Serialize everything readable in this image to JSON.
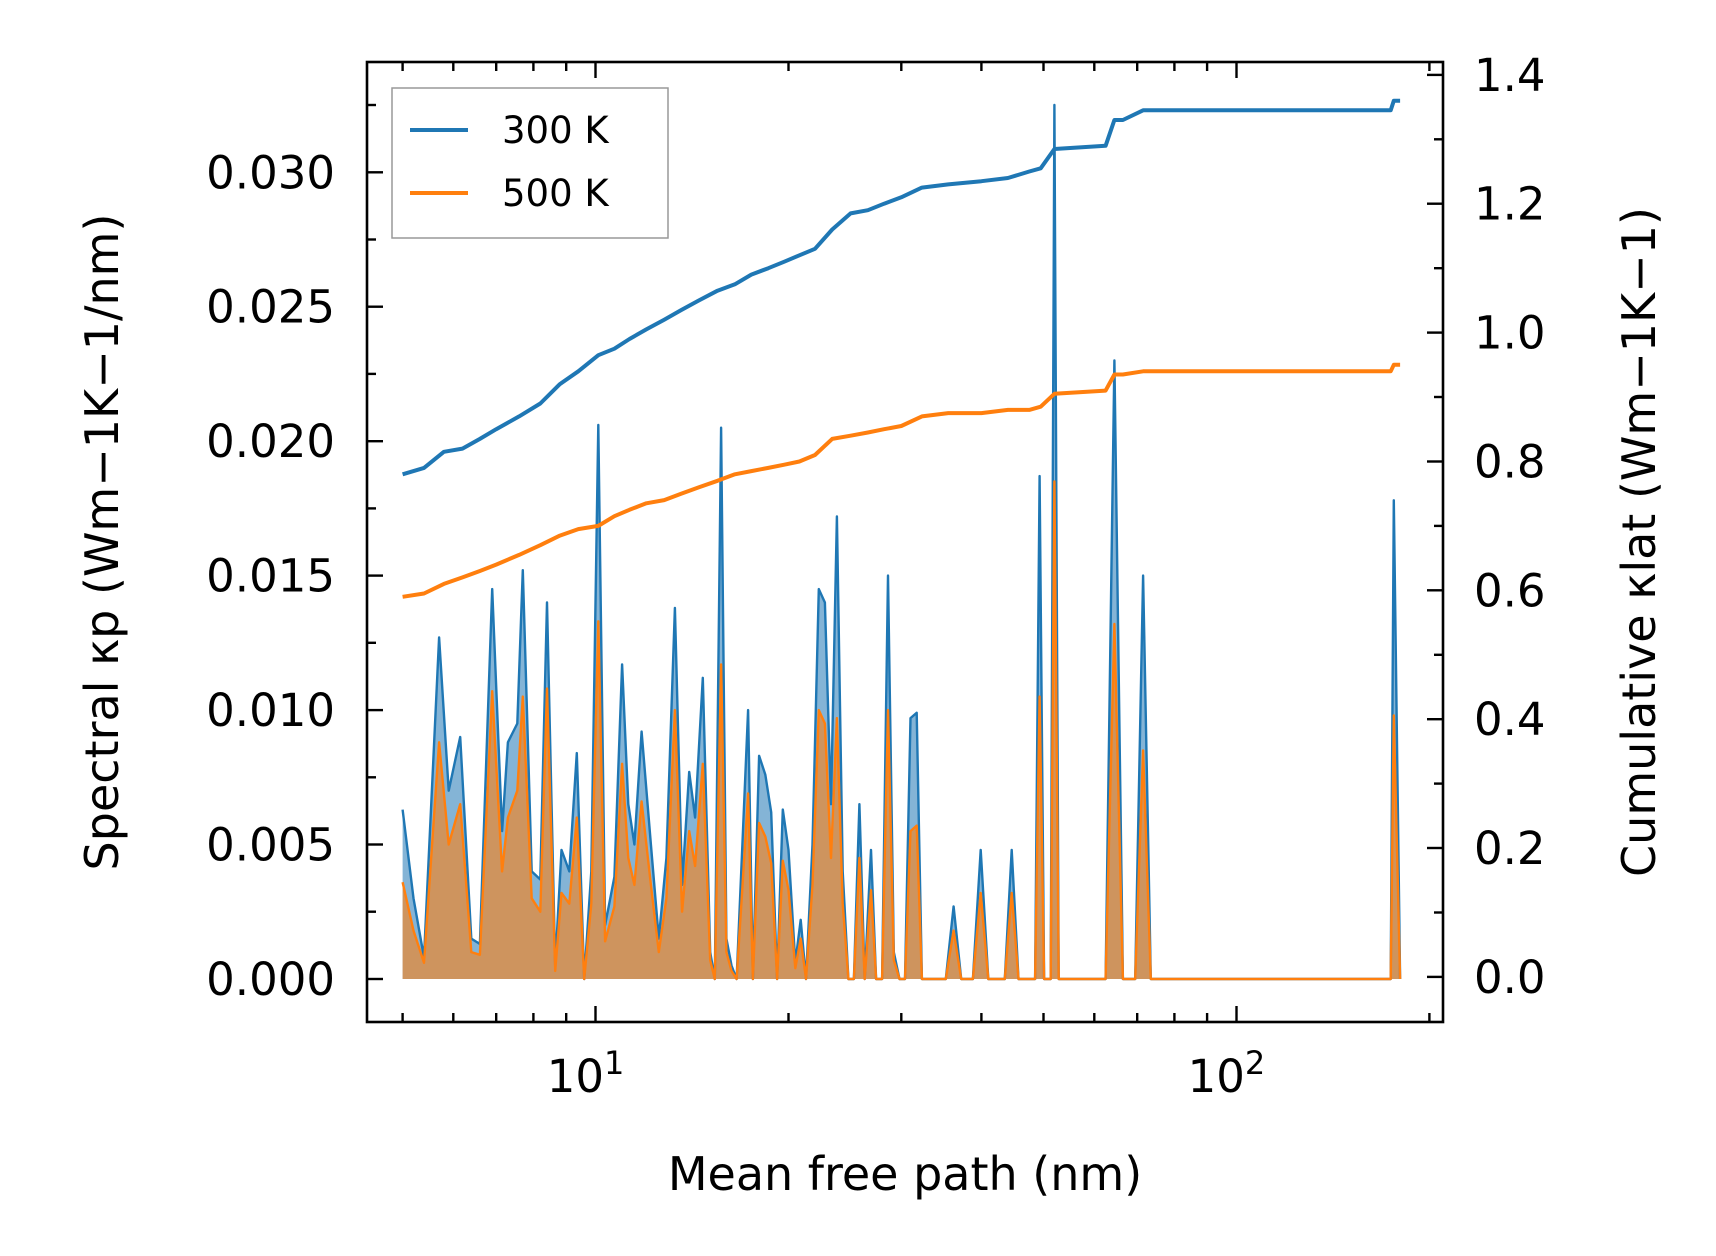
{
  "chart_data": {
    "type": "line",
    "title": "",
    "xlabel": "Mean free path (nm)",
    "ylabel_left": "Spectral κp (Wm−1K−1/nm)",
    "ylabel_right": "Cumulative κlat (Wm−1K−1)",
    "xscale": "log",
    "xlim": [
      4.4,
      210
    ],
    "ylim_left": [
      -0.0016,
      0.0341
    ],
    "ylim_right": [
      -0.07,
      1.42
    ],
    "grid": false,
    "legend_position": "top-left",
    "x_ticks": [
      "10^1",
      "10^2"
    ],
    "y_ticks_left": [
      "0.000",
      "0.005",
      "0.010",
      "0.015",
      "0.020",
      "0.025",
      "0.030"
    ],
    "y_ticks_right": [
      "0.0",
      "0.2",
      "0.4",
      "0.6",
      "0.8",
      "1.0",
      "1.2",
      "1.4"
    ],
    "series": [
      {
        "name": "300 K",
        "color": "#1f77b4",
        "spectral": [
          [
            5.0,
            0.0063
          ],
          [
            5.2,
            0.003
          ],
          [
            5.4,
            0.0008
          ],
          [
            5.7,
            0.0127
          ],
          [
            5.9,
            0.007
          ],
          [
            6.15,
            0.009
          ],
          [
            6.4,
            0.0015
          ],
          [
            6.6,
            0.0013
          ],
          [
            6.9,
            0.0145
          ],
          [
            7.15,
            0.0055
          ],
          [
            7.3,
            0.0088
          ],
          [
            7.55,
            0.0095
          ],
          [
            7.7,
            0.0152
          ],
          [
            7.95,
            0.004
          ],
          [
            8.2,
            0.0037
          ],
          [
            8.4,
            0.014
          ],
          [
            8.65,
            0.0005
          ],
          [
            8.85,
            0.0048
          ],
          [
            9.1,
            0.004
          ],
          [
            9.35,
            0.0084
          ],
          [
            9.6,
            0.0
          ],
          [
            9.85,
            0.004
          ],
          [
            10.1,
            0.0206
          ],
          [
            10.35,
            0.002
          ],
          [
            10.7,
            0.0038
          ],
          [
            11.0,
            0.0117
          ],
          [
            11.25,
            0.0065
          ],
          [
            11.5,
            0.005
          ],
          [
            11.8,
            0.0092
          ],
          [
            12.2,
            0.005
          ],
          [
            12.55,
            0.0015
          ],
          [
            12.9,
            0.0045
          ],
          [
            13.3,
            0.0138
          ],
          [
            13.65,
            0.0035
          ],
          [
            14.0,
            0.0077
          ],
          [
            14.3,
            0.006
          ],
          [
            14.7,
            0.0112
          ],
          [
            15.1,
            0.001
          ],
          [
            15.35,
            0.0
          ],
          [
            15.7,
            0.0205
          ],
          [
            16.0,
            0.0015
          ],
          [
            16.3,
            0.0005
          ],
          [
            16.6,
            0.0
          ],
          [
            16.95,
            0.005
          ],
          [
            17.3,
            0.01
          ],
          [
            17.6,
            0.0
          ],
          [
            18.0,
            0.0083
          ],
          [
            18.4,
            0.0076
          ],
          [
            18.8,
            0.0062
          ],
          [
            19.2,
            0.0
          ],
          [
            19.6,
            0.0063
          ],
          [
            20.0,
            0.0048
          ],
          [
            20.5,
            0.0006
          ],
          [
            20.9,
            0.0022
          ],
          [
            21.3,
            0.0
          ],
          [
            21.8,
            0.005
          ],
          [
            22.3,
            0.0145
          ],
          [
            22.8,
            0.014
          ],
          [
            23.3,
            0.0065
          ],
          [
            23.8,
            0.0172
          ],
          [
            24.3,
            0.004
          ],
          [
            24.8,
            0.0
          ],
          [
            25.3,
            0.0
          ],
          [
            25.8,
            0.0065
          ],
          [
            26.3,
            0.0
          ],
          [
            26.9,
            0.0048
          ],
          [
            27.4,
            0.0
          ],
          [
            28.0,
            0.0
          ],
          [
            28.6,
            0.015
          ],
          [
            29.2,
            0.001
          ],
          [
            29.8,
            0.0
          ],
          [
            30.4,
            0.0
          ],
          [
            31.0,
            0.0097
          ],
          [
            31.7,
            0.0099
          ],
          [
            32.3,
            0.0
          ],
          [
            35.2,
            0.0
          ],
          [
            36.2,
            0.0027
          ],
          [
            37.2,
            0.0
          ],
          [
            38.8,
            0.0
          ],
          [
            39.9,
            0.0048
          ],
          [
            41.0,
            0.0
          ],
          [
            43.5,
            0.0
          ],
          [
            44.6,
            0.0048
          ],
          [
            45.7,
            0.0
          ],
          [
            48.5,
            0.0
          ],
          [
            49.3,
            0.0187
          ],
          [
            50.1,
            0.0
          ],
          [
            51.3,
            0.0
          ],
          [
            52.0,
            0.0325
          ],
          [
            52.8,
            0.0
          ],
          [
            62.5,
            0.0
          ],
          [
            64.5,
            0.023
          ],
          [
            66.5,
            0.0
          ],
          [
            69.5,
            0.0
          ],
          [
            71.5,
            0.015
          ],
          [
            73.5,
            0.0
          ],
          [
            174.0,
            0.0
          ],
          [
            176.0,
            0.0178
          ],
          [
            180.0,
            0.0
          ]
        ],
        "cumulative": [
          [
            5.0,
            0.78
          ],
          [
            5.4,
            0.79
          ],
          [
            5.8,
            0.815
          ],
          [
            6.2,
            0.82
          ],
          [
            6.6,
            0.835
          ],
          [
            7.0,
            0.85
          ],
          [
            7.6,
            0.87
          ],
          [
            8.2,
            0.89
          ],
          [
            8.8,
            0.92
          ],
          [
            9.4,
            0.94
          ],
          [
            10.1,
            0.965
          ],
          [
            10.7,
            0.975
          ],
          [
            11.3,
            0.99
          ],
          [
            12.0,
            1.005
          ],
          [
            12.8,
            1.02
          ],
          [
            13.6,
            1.035
          ],
          [
            14.5,
            1.05
          ],
          [
            15.5,
            1.065
          ],
          [
            16.5,
            1.075
          ],
          [
            17.5,
            1.09
          ],
          [
            18.6,
            1.1
          ],
          [
            19.7,
            1.11
          ],
          [
            20.8,
            1.12
          ],
          [
            22.0,
            1.13
          ],
          [
            23.4,
            1.16
          ],
          [
            25.0,
            1.185
          ],
          [
            26.6,
            1.19
          ],
          [
            28.2,
            1.2
          ],
          [
            30.0,
            1.21
          ],
          [
            32.3,
            1.225
          ],
          [
            35.5,
            1.23
          ],
          [
            40.0,
            1.235
          ],
          [
            44.0,
            1.24
          ],
          [
            47.5,
            1.25
          ],
          [
            49.5,
            1.255
          ],
          [
            52.0,
            1.285
          ],
          [
            62.5,
            1.29
          ],
          [
            64.5,
            1.33
          ],
          [
            66.5,
            1.33
          ],
          [
            71.5,
            1.345
          ],
          [
            73.5,
            1.345
          ],
          [
            174.0,
            1.345
          ],
          [
            176.0,
            1.36
          ],
          [
            180.0,
            1.36
          ]
        ]
      },
      {
        "name": "500 K",
        "color": "#ff7f0e",
        "spectral": [
          [
            5.0,
            0.0036
          ],
          [
            5.2,
            0.0018
          ],
          [
            5.4,
            0.0006
          ],
          [
            5.7,
            0.0088
          ],
          [
            5.9,
            0.005
          ],
          [
            6.15,
            0.0065
          ],
          [
            6.4,
            0.001
          ],
          [
            6.6,
            0.0009
          ],
          [
            6.9,
            0.0107
          ],
          [
            7.15,
            0.004
          ],
          [
            7.3,
            0.006
          ],
          [
            7.55,
            0.007
          ],
          [
            7.7,
            0.0105
          ],
          [
            7.95,
            0.003
          ],
          [
            8.2,
            0.0025
          ],
          [
            8.4,
            0.0108
          ],
          [
            8.65,
            0.0003
          ],
          [
            8.85,
            0.0032
          ],
          [
            9.1,
            0.0028
          ],
          [
            9.35,
            0.006
          ],
          [
            9.6,
            0.0
          ],
          [
            9.85,
            0.0028
          ],
          [
            10.1,
            0.0133
          ],
          [
            10.35,
            0.0014
          ],
          [
            10.7,
            0.0027
          ],
          [
            11.0,
            0.008
          ],
          [
            11.25,
            0.0045
          ],
          [
            11.5,
            0.0035
          ],
          [
            11.8,
            0.0066
          ],
          [
            12.2,
            0.0035
          ],
          [
            12.55,
            0.001
          ],
          [
            12.9,
            0.003
          ],
          [
            13.3,
            0.01
          ],
          [
            13.65,
            0.0025
          ],
          [
            14.0,
            0.0055
          ],
          [
            14.3,
            0.0042
          ],
          [
            14.7,
            0.008
          ],
          [
            15.1,
            0.0007
          ],
          [
            15.35,
            0.0
          ],
          [
            15.7,
            0.0117
          ],
          [
            16.0,
            0.001
          ],
          [
            16.3,
            0.0003
          ],
          [
            16.6,
            0.0
          ],
          [
            16.95,
            0.0034
          ],
          [
            17.3,
            0.0069
          ],
          [
            17.6,
            0.0
          ],
          [
            18.0,
            0.0058
          ],
          [
            18.4,
            0.0053
          ],
          [
            18.8,
            0.0043
          ],
          [
            19.2,
            0.0
          ],
          [
            19.6,
            0.0044
          ],
          [
            20.0,
            0.0033
          ],
          [
            20.5,
            0.0004
          ],
          [
            20.9,
            0.0015
          ],
          [
            21.3,
            0.0
          ],
          [
            21.8,
            0.0035
          ],
          [
            22.3,
            0.01
          ],
          [
            22.8,
            0.0095
          ],
          [
            23.3,
            0.0045
          ],
          [
            23.8,
            0.0097
          ],
          [
            24.3,
            0.0028
          ],
          [
            24.8,
            0.0
          ],
          [
            25.3,
            0.0
          ],
          [
            25.8,
            0.0045
          ],
          [
            26.3,
            0.0
          ],
          [
            26.9,
            0.0033
          ],
          [
            27.4,
            0.0
          ],
          [
            28.0,
            0.0
          ],
          [
            28.6,
            0.01
          ],
          [
            29.2,
            0.0007
          ],
          [
            29.8,
            0.0
          ],
          [
            30.4,
            0.0
          ],
          [
            31.0,
            0.0055
          ],
          [
            31.7,
            0.0057
          ],
          [
            32.3,
            0.0
          ],
          [
            35.2,
            0.0
          ],
          [
            36.2,
            0.0018
          ],
          [
            37.2,
            0.0
          ],
          [
            38.8,
            0.0
          ],
          [
            39.9,
            0.0032
          ],
          [
            41.0,
            0.0
          ],
          [
            43.5,
            0.0
          ],
          [
            44.6,
            0.0032
          ],
          [
            45.7,
            0.0
          ],
          [
            48.5,
            0.0
          ],
          [
            49.3,
            0.0105
          ],
          [
            50.1,
            0.0
          ],
          [
            51.3,
            0.0
          ],
          [
            52.0,
            0.0185
          ],
          [
            52.8,
            0.0
          ],
          [
            62.5,
            0.0
          ],
          [
            64.5,
            0.0132
          ],
          [
            66.5,
            0.0
          ],
          [
            69.5,
            0.0
          ],
          [
            71.5,
            0.0085
          ],
          [
            73.5,
            0.0
          ],
          [
            174.0,
            0.0
          ],
          [
            176.0,
            0.0098
          ],
          [
            180.0,
            0.0
          ]
        ],
        "cumulative": [
          [
            5.0,
            0.59
          ],
          [
            5.4,
            0.595
          ],
          [
            5.8,
            0.61
          ],
          [
            6.2,
            0.62
          ],
          [
            6.6,
            0.63
          ],
          [
            7.0,
            0.64
          ],
          [
            7.6,
            0.655
          ],
          [
            8.2,
            0.67
          ],
          [
            8.8,
            0.685
          ],
          [
            9.4,
            0.695
          ],
          [
            10.1,
            0.7
          ],
          [
            10.7,
            0.715
          ],
          [
            11.3,
            0.725
          ],
          [
            12.0,
            0.735
          ],
          [
            12.8,
            0.74
          ],
          [
            13.6,
            0.75
          ],
          [
            14.5,
            0.76
          ],
          [
            15.5,
            0.77
          ],
          [
            16.5,
            0.78
          ],
          [
            17.5,
            0.785
          ],
          [
            18.6,
            0.79
          ],
          [
            19.7,
            0.795
          ],
          [
            20.8,
            0.8
          ],
          [
            22.0,
            0.81
          ],
          [
            23.4,
            0.835
          ],
          [
            25.0,
            0.84
          ],
          [
            26.6,
            0.845
          ],
          [
            28.2,
            0.85
          ],
          [
            30.0,
            0.855
          ],
          [
            32.3,
            0.87
          ],
          [
            35.5,
            0.875
          ],
          [
            40.0,
            0.875
          ],
          [
            44.0,
            0.88
          ],
          [
            47.5,
            0.88
          ],
          [
            49.5,
            0.885
          ],
          [
            52.0,
            0.905
          ],
          [
            62.5,
            0.91
          ],
          [
            64.5,
            0.935
          ],
          [
            66.5,
            0.935
          ],
          [
            71.5,
            0.94
          ],
          [
            73.5,
            0.94
          ],
          [
            174.0,
            0.94
          ],
          [
            176.0,
            0.95
          ],
          [
            180.0,
            0.95
          ]
        ]
      }
    ]
  }
}
